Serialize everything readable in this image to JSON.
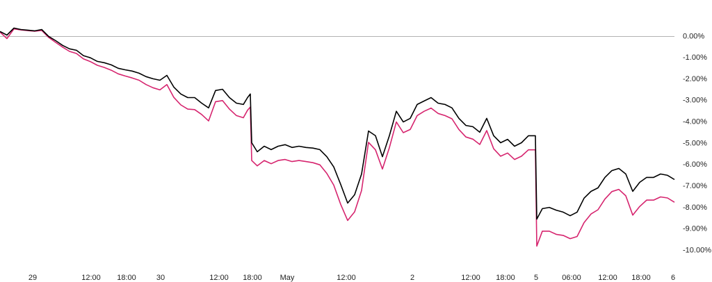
{
  "chart_data": {
    "type": "line",
    "x": [
      0,
      10,
      20,
      30,
      40,
      50,
      60,
      70,
      80,
      90,
      100,
      110,
      120,
      130,
      140,
      150,
      160,
      170,
      180,
      190,
      200,
      210,
      220,
      230,
      240,
      250,
      260,
      270,
      280,
      290,
      300,
      310,
      320,
      330,
      340,
      350,
      356,
      360,
      362,
      370,
      380,
      390,
      400,
      410,
      420,
      430,
      440,
      450,
      460,
      470,
      480,
      490,
      500,
      510,
      520,
      530,
      540,
      550,
      560,
      570,
      580,
      590,
      600,
      610,
      620,
      630,
      640,
      650,
      660,
      670,
      680,
      690,
      700,
      710,
      720,
      730,
      740,
      750,
      760,
      770,
      772,
      780,
      790,
      800,
      810,
      820,
      830,
      840,
      850,
      860,
      870,
      880,
      890,
      900,
      910,
      920,
      930,
      940,
      950,
      960,
      970
    ],
    "series": [
      {
        "color": "#000000",
        "values": [
          0.23,
          0.06,
          0.39,
          0.32,
          0.29,
          0.26,
          0.32,
          0,
          -0.2,
          -0.42,
          -0.58,
          -0.65,
          -0.9,
          -1.0,
          -1.17,
          -1.23,
          -1.33,
          -1.49,
          -1.56,
          -1.62,
          -1.72,
          -1.88,
          -1.98,
          -2.05,
          -1.82,
          -2.37,
          -2.69,
          -2.86,
          -2.86,
          -3.12,
          -3.34,
          -2.53,
          -2.47,
          -2.86,
          -3.12,
          -3.18,
          -2.86,
          -2.69,
          -4.97,
          -5.39,
          -5.13,
          -5.29,
          -5.13,
          -5.06,
          -5.19,
          -5.13,
          -5.19,
          -5.22,
          -5.29,
          -5.62,
          -6.1,
          -6.92,
          -7.79,
          -7.4,
          -6.43,
          -4.42,
          -4.64,
          -5.62,
          -4.64,
          -3.5,
          -4.0,
          -3.83,
          -3.18,
          -3.02,
          -2.86,
          -3.12,
          -3.18,
          -3.34,
          -3.83,
          -4.16,
          -4.22,
          -4.48,
          -3.83,
          -4.64,
          -4.97,
          -4.81,
          -5.13,
          -4.97,
          -4.64,
          -4.64,
          -8.54,
          -8.05,
          -7.99,
          -8.12,
          -8.21,
          -8.38,
          -8.21,
          -7.56,
          -7.24,
          -7.08,
          -6.59,
          -6.27,
          -6.17,
          -6.43,
          -7.24,
          -6.82,
          -6.59,
          -6.59,
          -6.43,
          -6.49,
          -6.69
        ]
      },
      {
        "color": "#d6246e",
        "values": [
          0.2,
          -0.1,
          0.35,
          0.3,
          0.27,
          0.24,
          0.28,
          -0.05,
          -0.28,
          -0.5,
          -0.7,
          -0.8,
          -1.05,
          -1.18,
          -1.35,
          -1.45,
          -1.58,
          -1.75,
          -1.85,
          -1.94,
          -2.05,
          -2.25,
          -2.4,
          -2.5,
          -2.25,
          -2.85,
          -3.2,
          -3.4,
          -3.42,
          -3.65,
          -3.95,
          -3.05,
          -3.0,
          -3.4,
          -3.7,
          -3.8,
          -3.45,
          -3.3,
          -5.8,
          -6.05,
          -5.8,
          -5.95,
          -5.8,
          -5.75,
          -5.85,
          -5.8,
          -5.85,
          -5.9,
          -6.0,
          -6.4,
          -6.95,
          -7.85,
          -8.6,
          -8.2,
          -7.2,
          -4.95,
          -5.3,
          -6.2,
          -5.2,
          -4.0,
          -4.5,
          -4.35,
          -3.7,
          -3.5,
          -3.35,
          -3.6,
          -3.7,
          -3.85,
          -4.35,
          -4.7,
          -4.8,
          -5.05,
          -4.4,
          -5.25,
          -5.6,
          -5.45,
          -5.75,
          -5.6,
          -5.3,
          -5.3,
          -9.8,
          -9.1,
          -9.1,
          -9.25,
          -9.3,
          -9.45,
          -9.35,
          -8.7,
          -8.3,
          -8.1,
          -7.6,
          -7.25,
          -7.15,
          -7.45,
          -8.35,
          -7.95,
          -7.65,
          -7.65,
          -7.5,
          -7.55,
          -7.75
        ]
      }
    ],
    "xlim": [
      0,
      970
    ],
    "xticks": [
      {
        "value": 47,
        "label": "29"
      },
      {
        "value": 131,
        "label": "12:00"
      },
      {
        "value": 182,
        "label": "18:00"
      },
      {
        "value": 231,
        "label": "30"
      },
      {
        "value": 315,
        "label": "12:00"
      },
      {
        "value": 363,
        "label": "18:00"
      },
      {
        "value": 413,
        "label": "May"
      },
      {
        "value": 498,
        "label": "12:00"
      },
      {
        "value": 593,
        "label": "2"
      },
      {
        "value": 677,
        "label": "12:00"
      },
      {
        "value": 727,
        "label": "18:00"
      },
      {
        "value": 771,
        "label": "5"
      },
      {
        "value": 822,
        "label": "06:00"
      },
      {
        "value": 874,
        "label": "12:00"
      },
      {
        "value": 922,
        "label": "18:00"
      },
      {
        "value": 968,
        "label": "6"
      }
    ],
    "ylim": [
      -10.6,
      1.7
    ],
    "yticks": [
      {
        "value": 0,
        "label": "0.00%"
      },
      {
        "value": -1,
        "label": "-1.00%"
      },
      {
        "value": -2,
        "label": "-2.00%"
      },
      {
        "value": -3,
        "label": "-3.00%"
      },
      {
        "value": -4,
        "label": "-4.00%"
      },
      {
        "value": -5,
        "label": "-5.00%"
      },
      {
        "value": -6,
        "label": "-6.00%"
      },
      {
        "value": -7,
        "label": "-7.00%"
      },
      {
        "value": -8,
        "label": "-8.00%"
      },
      {
        "value": -9,
        "label": "-9.00%"
      },
      {
        "value": -10,
        "label": "-10.00%"
      }
    ],
    "zero_line": true
  }
}
